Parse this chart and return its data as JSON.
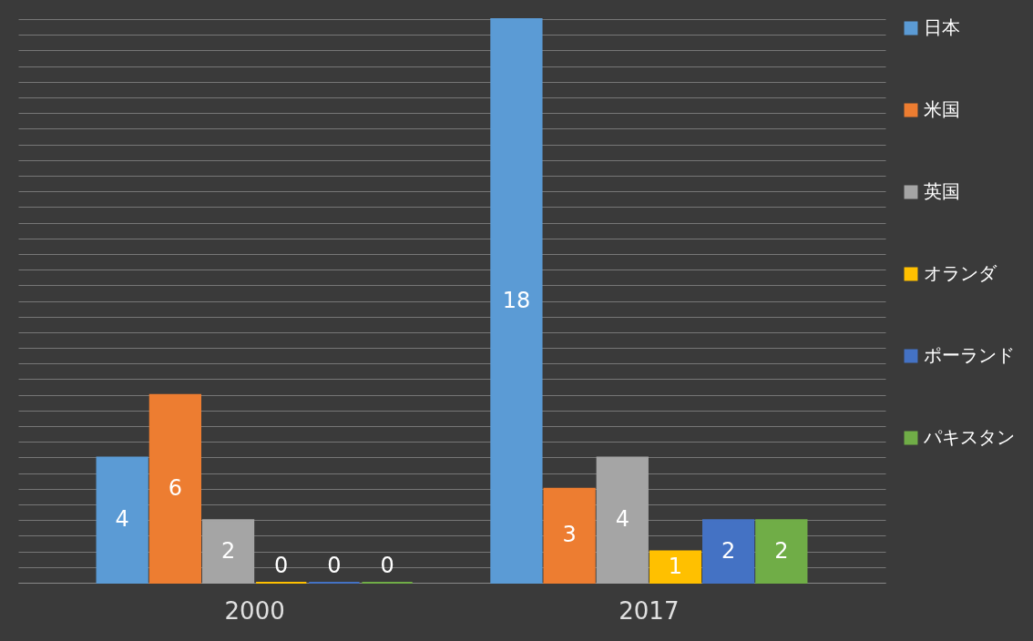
{
  "chart_data": {
    "type": "bar",
    "categories": [
      "2000",
      "2017"
    ],
    "series": [
      {
        "name": "日本",
        "color": "#5b9bd5",
        "values": [
          4,
          18
        ]
      },
      {
        "name": "米国",
        "color": "#ed7d31",
        "values": [
          6,
          3
        ]
      },
      {
        "name": "英国",
        "color": "#a5a5a5",
        "values": [
          2,
          4
        ]
      },
      {
        "name": "オランダ",
        "color": "#ffc000",
        "values": [
          0,
          1
        ]
      },
      {
        "name": "ポーランド",
        "color": "#4472c4",
        "values": [
          0,
          2
        ]
      },
      {
        "name": "パキスタン",
        "color": "#70ad47",
        "values": [
          0,
          2
        ]
      }
    ],
    "grid": "y",
    "legend": "right",
    "tick_labels": "x",
    "data_labels": true
  }
}
